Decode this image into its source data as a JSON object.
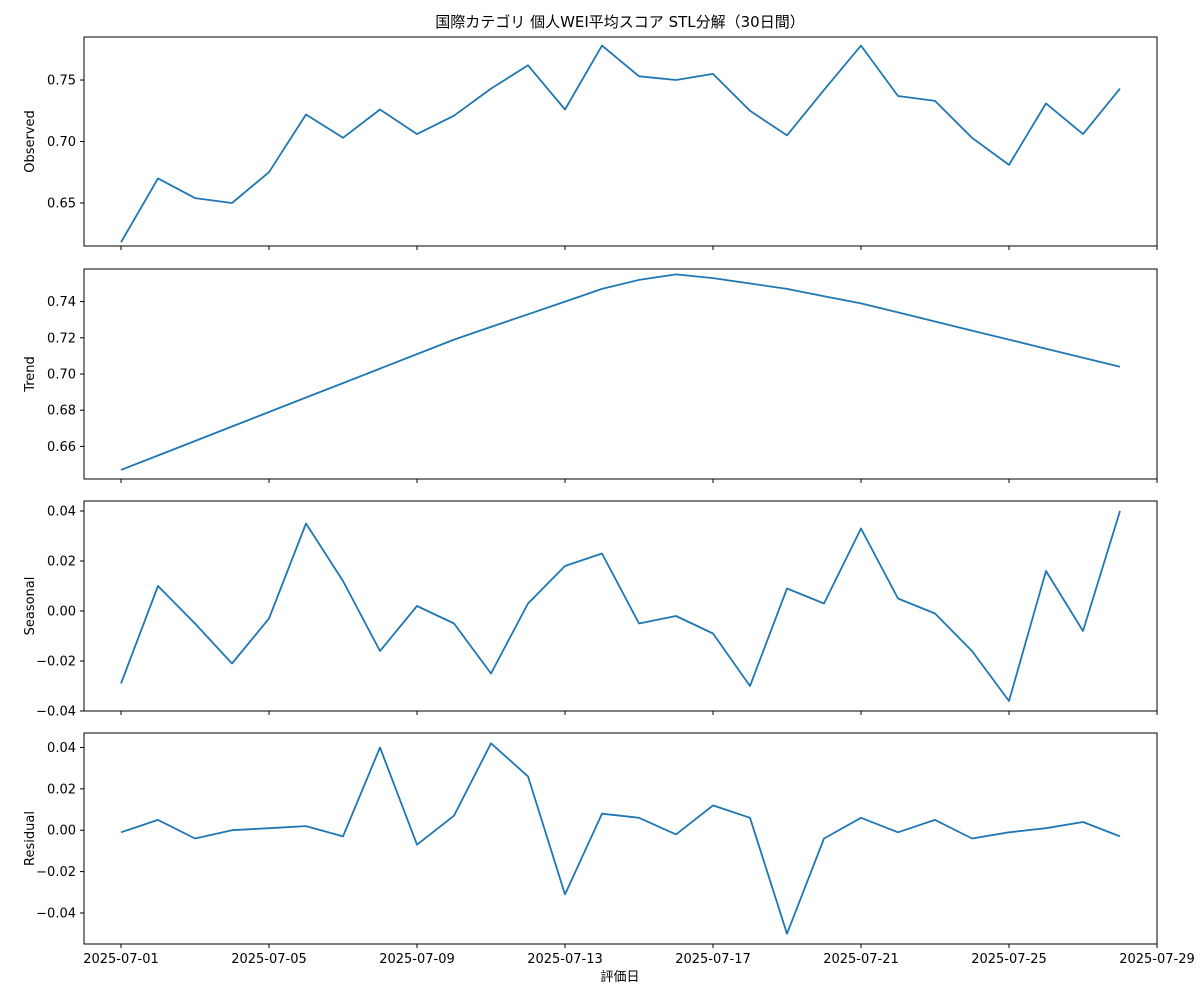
{
  "chart_data": {
    "type": "line",
    "title": "国際カテゴリ 個人WEI平均スコア STL分解（30日間）",
    "xlabel": "評価日",
    "x_dates": [
      "2025-07-01",
      "2025-07-02",
      "2025-07-03",
      "2025-07-04",
      "2025-07-05",
      "2025-07-06",
      "2025-07-07",
      "2025-07-08",
      "2025-07-09",
      "2025-07-10",
      "2025-07-11",
      "2025-07-12",
      "2025-07-13",
      "2025-07-14",
      "2025-07-15",
      "2025-07-16",
      "2025-07-17",
      "2025-07-18",
      "2025-07-19",
      "2025-07-20",
      "2025-07-21",
      "2025-07-22",
      "2025-07-23",
      "2025-07-24",
      "2025-07-25",
      "2025-07-26",
      "2025-07-27",
      "2025-07-28"
    ],
    "x_tick_labels": [
      "2025-07-01",
      "2025-07-05",
      "2025-07-09",
      "2025-07-13",
      "2025-07-17",
      "2025-07-21",
      "2025-07-25",
      "2025-07-29"
    ],
    "x_range": [
      "2025-06-30",
      "2025-07-29"
    ],
    "line_color": "#1f77b4",
    "grid": false,
    "panels": [
      {
        "ylabel": "Observed",
        "ylim": [
          0.615,
          0.785
        ],
        "yticks": [
          0.65,
          0.7,
          0.75
        ],
        "ytick_labels": [
          "0.65",
          "0.70",
          "0.75"
        ],
        "values": [
          0.618,
          0.67,
          0.654,
          0.65,
          0.675,
          0.722,
          0.703,
          0.726,
          0.706,
          0.721,
          0.743,
          0.762,
          0.726,
          0.778,
          0.753,
          0.75,
          0.755,
          0.725,
          0.705,
          0.742,
          0.778,
          0.737,
          0.733,
          0.703,
          0.681,
          0.731,
          0.706,
          0.743
        ]
      },
      {
        "ylabel": "Trend",
        "ylim": [
          0.642,
          0.758
        ],
        "yticks": [
          0.66,
          0.68,
          0.7,
          0.72,
          0.74
        ],
        "ytick_labels": [
          "0.66",
          "0.68",
          "0.70",
          "0.72",
          "0.74"
        ],
        "values": [
          0.647,
          0.655,
          0.663,
          0.671,
          0.679,
          0.687,
          0.695,
          0.703,
          0.711,
          0.719,
          0.726,
          0.733,
          0.74,
          0.747,
          0.752,
          0.755,
          0.753,
          0.75,
          0.747,
          0.743,
          0.739,
          0.734,
          0.729,
          0.724,
          0.719,
          0.714,
          0.709,
          0.704
        ]
      },
      {
        "ylabel": "Seasonal",
        "ylim": [
          -0.04,
          0.044
        ],
        "yticks": [
          -0.04,
          -0.02,
          0.0,
          0.02,
          0.04
        ],
        "ytick_labels": [
          "−0.04",
          "−0.02",
          "0.00",
          "0.02",
          "0.04"
        ],
        "values": [
          -0.029,
          0.01,
          -0.005,
          -0.021,
          -0.003,
          0.035,
          0.012,
          -0.016,
          0.002,
          -0.005,
          -0.025,
          0.003,
          0.018,
          0.023,
          -0.005,
          -0.002,
          -0.009,
          -0.03,
          0.009,
          0.003,
          0.033,
          0.005,
          -0.001,
          -0.016,
          -0.036,
          0.016,
          -0.008,
          0.04
        ]
      },
      {
        "ylabel": "Residual",
        "ylim": [
          -0.055,
          0.047
        ],
        "yticks": [
          -0.04,
          -0.02,
          0.0,
          0.02,
          0.04
        ],
        "ytick_labels": [
          "−0.04",
          "−0.02",
          "0.00",
          "0.02",
          "0.04"
        ],
        "values": [
          -0.001,
          0.005,
          -0.004,
          0.0,
          0.001,
          0.002,
          -0.003,
          0.04,
          -0.007,
          0.007,
          0.042,
          0.026,
          -0.031,
          0.008,
          0.006,
          -0.002,
          0.012,
          0.006,
          -0.05,
          -0.004,
          0.006,
          -0.001,
          0.005,
          -0.004,
          -0.001,
          0.001,
          0.004,
          -0.003
        ]
      }
    ]
  }
}
